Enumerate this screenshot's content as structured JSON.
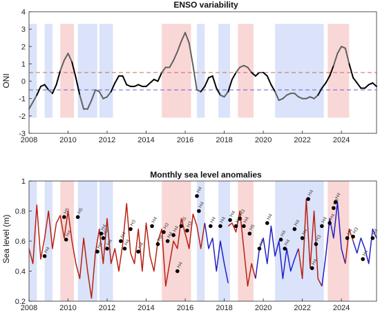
{
  "colors": {
    "el_nino_band": "#f7c9c9",
    "la_nina_band": "#cdd9f7",
    "oni_line_black": "#000000",
    "oni_line_grey": "#606060",
    "el_nino_threshold": "#d06060",
    "la_nina_threshold": "#6060d0",
    "sla_red": "#b82010",
    "sla_blue": "#2020c8",
    "marker": "#000000"
  },
  "chart_data": [
    {
      "type": "line",
      "title": "ENSO variability",
      "xlabel": "",
      "ylabel": "ONI",
      "xlim": [
        2008,
        2025.8
      ],
      "ylim": [
        -3,
        4
      ],
      "xticks": [
        2008,
        2010,
        2012,
        2014,
        2016,
        2018,
        2020,
        2022,
        2024
      ],
      "yticks": [
        -3,
        -2,
        -1,
        0,
        1,
        2,
        3,
        4
      ],
      "thresholds": [
        0.5,
        -0.5
      ],
      "el_nino_periods": [
        [
          2009.6,
          2010.3
        ],
        [
          2014.8,
          2016.3
        ],
        [
          2018.7,
          2019.5
        ],
        [
          2023.3,
          2024.4
        ]
      ],
      "la_nina_periods": [
        [
          2008.0,
          2008.4
        ],
        [
          2008.8,
          2009.2
        ],
        [
          2010.5,
          2011.5
        ],
        [
          2011.6,
          2012.3
        ],
        [
          2016.6,
          2017.0
        ],
        [
          2017.7,
          2018.3
        ],
        [
          2020.6,
          2023.1
        ]
      ],
      "series": [
        {
          "x": [
            2008.0,
            2008.2,
            2008.4,
            2008.6,
            2008.8,
            2009.0,
            2009.2,
            2009.4,
            2009.6,
            2009.8,
            2010.0,
            2010.2,
            2010.4,
            2010.6,
            2010.8,
            2011.0,
            2011.2,
            2011.4,
            2011.6,
            2011.8,
            2012.0,
            2012.2,
            2012.4,
            2012.6,
            2012.8,
            2013.0,
            2013.2,
            2013.4,
            2013.6,
            2013.8,
            2014.0,
            2014.2,
            2014.4,
            2014.6,
            2014.8,
            2015.0,
            2015.2,
            2015.4,
            2015.6,
            2015.8,
            2016.0,
            2016.2,
            2016.4,
            2016.6,
            2016.8,
            2017.0,
            2017.2,
            2017.4,
            2017.6,
            2017.8,
            2018.0,
            2018.2,
            2018.4,
            2018.6,
            2018.8,
            2019.0,
            2019.2,
            2019.4,
            2019.6,
            2019.8,
            2020.0,
            2020.2,
            2020.4,
            2020.6,
            2020.8,
            2021.0,
            2021.2,
            2021.4,
            2021.6,
            2021.8,
            2022.0,
            2022.2,
            2022.4,
            2022.6,
            2022.8,
            2023.0,
            2023.2,
            2023.4,
            2023.6,
            2023.8,
            2024.0,
            2024.2,
            2024.4,
            2024.6,
            2024.8,
            2025.0,
            2025.2,
            2025.4,
            2025.6,
            2025.8
          ],
          "y": [
            -1.6,
            -1.2,
            -0.8,
            -0.3,
            -0.2,
            -0.5,
            -0.7,
            -0.2,
            0.6,
            1.2,
            1.6,
            1.1,
            0.2,
            -0.8,
            -1.6,
            -1.6,
            -1.1,
            -0.5,
            -0.6,
            -1.0,
            -0.9,
            -0.6,
            -0.1,
            0.3,
            0.3,
            -0.2,
            -0.3,
            -0.3,
            -0.2,
            -0.3,
            -0.3,
            -0.1,
            0.1,
            0.0,
            0.5,
            0.8,
            0.8,
            1.2,
            1.7,
            2.3,
            2.8,
            2.2,
            0.9,
            -0.5,
            -0.6,
            -0.3,
            0.2,
            0.3,
            -0.4,
            -0.8,
            -0.9,
            -0.6,
            0.1,
            0.5,
            0.8,
            0.9,
            0.8,
            0.5,
            0.3,
            0.5,
            0.5,
            0.3,
            -0.2,
            -0.6,
            -1.1,
            -1.0,
            -0.8,
            -0.7,
            -0.7,
            -0.9,
            -1.0,
            -1.0,
            -0.9,
            -1.0,
            -0.8,
            -0.4,
            -0.1,
            0.3,
            0.9,
            1.6,
            2.0,
            1.9,
            1.0,
            0.2,
            -0.1,
            -0.4,
            -0.4,
            -0.2,
            -0.1,
            -0.3
          ]
        }
      ]
    },
    {
      "type": "line",
      "title": "Monthly sea level anomalies",
      "xlabel": "",
      "ylabel": "Sea level (m)",
      "xlim": [
        2008,
        2025.8
      ],
      "ylim": [
        0.2,
        1.0
      ],
      "xticks": [
        2008,
        2010,
        2012,
        2014,
        2016,
        2018,
        2020,
        2022,
        2024
      ],
      "yticks": [
        0.2,
        0.4,
        0.6,
        0.8,
        1.0
      ],
      "el_nino_periods": [
        [
          2009.6,
          2010.3
        ],
        [
          2014.8,
          2016.3
        ],
        [
          2018.7,
          2019.5
        ],
        [
          2023.3,
          2024.4
        ]
      ],
      "la_nina_periods": [
        [
          2008.0,
          2008.4
        ],
        [
          2008.8,
          2009.2
        ],
        [
          2010.5,
          2011.5
        ],
        [
          2011.6,
          2012.3
        ],
        [
          2016.6,
          2017.0
        ],
        [
          2017.7,
          2018.3
        ],
        [
          2020.6,
          2023.1
        ]
      ],
      "series": [
        {
          "name": "",
          "color": "#b82010",
          "x": [
            2008.0,
            2008.2,
            2008.4,
            2008.6,
            2008.8,
            2009.0,
            2009.2,
            2009.4,
            2009.6,
            2009.8,
            2010.0,
            2010.2,
            2010.4,
            2010.6,
            2010.8,
            2011.0,
            2011.2,
            2011.4,
            2011.6,
            2011.8,
            2012.0,
            2012.2,
            2012.4,
            2012.6,
            2012.8,
            2013.0,
            2013.2,
            2013.4,
            2013.6,
            2013.8,
            2014.0,
            2014.2,
            2014.4,
            2014.6,
            2014.8,
            2015.0,
            2015.2,
            2015.4,
            2015.6,
            2015.8,
            2016.0,
            2016.2,
            2016.4,
            2016.6,
            2016.8,
            2017.0
          ],
          "y": [
            0.55,
            0.45,
            0.84,
            0.48,
            0.62,
            0.8,
            0.55,
            0.72,
            0.77,
            0.62,
            0.8,
            0.6,
            0.45,
            0.35,
            0.62,
            0.4,
            0.22,
            0.52,
            0.68,
            0.45,
            0.75,
            0.45,
            0.55,
            0.4,
            0.58,
            0.85,
            0.52,
            0.45,
            0.68,
            0.4,
            0.72,
            0.5,
            0.4,
            0.6,
            0.68,
            0.3,
            0.45,
            0.6,
            0.55,
            0.75,
            0.65,
            0.55,
            0.78,
            0.7,
            0.55,
            0.72
          ]
        },
        {
          "name": "",
          "color": "#2020c8",
          "x": [
            2017.0,
            2017.2,
            2017.4,
            2017.6,
            2017.8,
            2018.0,
            2018.2
          ],
          "y": [
            0.72,
            0.55,
            0.62,
            0.4,
            0.6,
            0.45,
            0.32
          ]
        },
        {
          "name": "",
          "color": "#b82010",
          "x": [
            2018.2,
            2018.4,
            2018.6,
            2018.8,
            2019.0,
            2019.2,
            2019.4,
            2019.6
          ],
          "y": [
            0.7,
            0.72,
            0.66,
            0.8,
            0.55,
            0.3,
            0.45,
            0.35
          ]
        },
        {
          "name": "",
          "color": "#2020c8",
          "x": [
            2019.6,
            2019.8,
            2020.0,
            2020.2,
            2020.4,
            2020.6,
            2020.8,
            2021.0,
            2021.2,
            2021.4,
            2021.6,
            2021.8
          ],
          "y": [
            0.35,
            0.55,
            0.62,
            0.45,
            0.7,
            0.5,
            0.6,
            0.35,
            0.55,
            0.4,
            0.48,
            0.55
          ]
        },
        {
          "name": "",
          "color": "#b82010",
          "x": [
            2021.8,
            2022.0,
            2022.2,
            2022.4,
            2022.6,
            2022.8,
            2023.0
          ],
          "y": [
            0.55,
            0.35,
            0.88,
            0.42,
            0.8,
            0.35,
            0.3
          ]
        },
        {
          "name": "",
          "color": "#2020c8",
          "x": [
            2023.0,
            2023.2,
            2023.4,
            2023.6,
            2023.8,
            2024.0,
            2024.2
          ],
          "y": [
            0.3,
            0.5,
            0.75,
            0.62,
            0.86,
            0.55,
            0.45
          ]
        },
        {
          "name": "",
          "color": "#b82010",
          "x": [
            2024.2,
            2024.4,
            2024.6
          ],
          "y": [
            0.45,
            0.68,
            0.6
          ]
        },
        {
          "name": "",
          "color": "#2020c8",
          "x": [
            2024.6,
            2024.8,
            2025.0,
            2025.2,
            2025.4,
            2025.6,
            2025.8
          ],
          "y": [
            0.6,
            0.52,
            0.62,
            0.55,
            0.45,
            0.68,
            0.62
          ]
        }
      ],
      "markers": [
        {
          "x": 2008.8,
          "y": 0.5,
          "label": "H4"
        },
        {
          "x": 2009.8,
          "y": 0.76,
          "label": "H5"
        },
        {
          "x": 2009.9,
          "y": 0.61,
          "label": "H4"
        },
        {
          "x": 2010.5,
          "y": 0.76,
          "label": "H5"
        },
        {
          "x": 2011.5,
          "y": 0.53,
          "label": "H4"
        },
        {
          "x": 2011.7,
          "y": 0.65,
          "label": "H4"
        },
        {
          "x": 2011.8,
          "y": 0.62,
          "label": "H3"
        },
        {
          "x": 2012.0,
          "y": 0.55,
          "label": "H4"
        },
        {
          "x": 2012.7,
          "y": 0.6,
          "label": "H4"
        },
        {
          "x": 2012.9,
          "y": 0.55,
          "label": "H4"
        },
        {
          "x": 2013.2,
          "y": 0.68,
          "label": "H3"
        },
        {
          "x": 2013.6,
          "y": 0.53,
          "label": "H4"
        },
        {
          "x": 2014.3,
          "y": 0.7,
          "label": "H4"
        },
        {
          "x": 2014.6,
          "y": 0.58,
          "label": "H4"
        },
        {
          "x": 2014.9,
          "y": 0.66,
          "label": "H3"
        },
        {
          "x": 2015.1,
          "y": 0.6,
          "label": "H4"
        },
        {
          "x": 2015.4,
          "y": 0.64,
          "label": "H4"
        },
        {
          "x": 2015.6,
          "y": 0.4,
          "label": "H4"
        },
        {
          "x": 2015.8,
          "y": 0.7,
          "label": "H5"
        },
        {
          "x": 2016.1,
          "y": 0.67,
          "label": "H3"
        },
        {
          "x": 2016.6,
          "y": 0.9,
          "label": "H4"
        },
        {
          "x": 2016.7,
          "y": 0.8,
          "label": "H4"
        },
        {
          "x": 2017.3,
          "y": 0.7,
          "label": "H4"
        },
        {
          "x": 2017.8,
          "y": 0.7,
          "label": "H4"
        },
        {
          "x": 2018.3,
          "y": 0.74,
          "label": "H4"
        },
        {
          "x": 2018.6,
          "y": 0.7,
          "label": "H4"
        },
        {
          "x": 2018.8,
          "y": 0.75,
          "label": "H3"
        },
        {
          "x": 2019.0,
          "y": 0.7,
          "label": "H4"
        },
        {
          "x": 2019.3,
          "y": 0.65,
          "label": "H5"
        },
        {
          "x": 2019.8,
          "y": 0.55,
          "label": "H4"
        },
        {
          "x": 2020.2,
          "y": 0.72,
          "label": "H4"
        },
        {
          "x": 2020.9,
          "y": 0.61,
          "label": "H4"
        },
        {
          "x": 2021.1,
          "y": 0.55,
          "label": "H4"
        },
        {
          "x": 2021.6,
          "y": 0.68,
          "label": "H4"
        },
        {
          "x": 2022.0,
          "y": 0.62,
          "label": "H4"
        },
        {
          "x": 2022.3,
          "y": 0.88,
          "label": "H4"
        },
        {
          "x": 2022.5,
          "y": 0.42,
          "label": "H4"
        },
        {
          "x": 2022.7,
          "y": 0.58,
          "label": "H3"
        },
        {
          "x": 2023.0,
          "y": 0.7,
          "label": "H4"
        },
        {
          "x": 2023.4,
          "y": 0.72,
          "label": "H4"
        },
        {
          "x": 2023.6,
          "y": 0.82,
          "label": "H4"
        },
        {
          "x": 2023.7,
          "y": 0.86,
          "label": "H4"
        },
        {
          "x": 2024.3,
          "y": 0.62,
          "label": "H4"
        },
        {
          "x": 2024.6,
          "y": 0.63,
          "label": "H3"
        },
        {
          "x": 2025.1,
          "y": 0.48,
          "label": "H4"
        },
        {
          "x": 2025.6,
          "y": 0.62,
          "label": "H4"
        }
      ]
    }
  ]
}
